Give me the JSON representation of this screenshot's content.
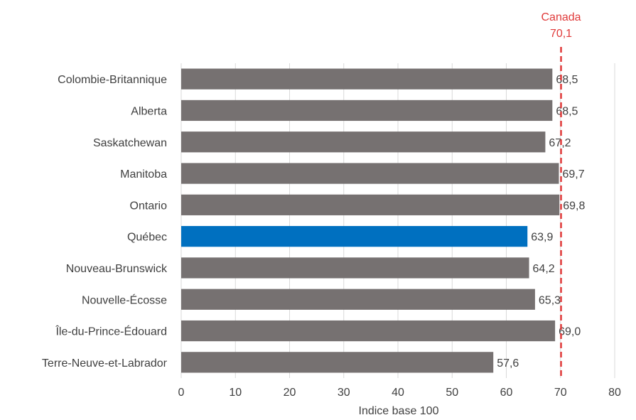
{
  "chart_data": {
    "type": "bar",
    "orientation": "horizontal",
    "categories": [
      "Colombie-Britannique",
      "Alberta",
      "Saskatchewan",
      "Manitoba",
      "Ontario",
      "Québec",
      "Nouveau-Brunswick",
      "Nouvelle-Écosse",
      "Île-du-Prince-Édouard",
      "Terre-Neuve-et-Labrador"
    ],
    "values": [
      68.5,
      68.5,
      67.2,
      69.7,
      69.8,
      63.9,
      64.2,
      65.3,
      69.0,
      57.6
    ],
    "value_labels": [
      "68,5",
      "68,5",
      "67,2",
      "69,7",
      "69,8",
      "63,9",
      "64,2",
      "65,3",
      "69,0",
      "57,6"
    ],
    "highlight_category": "Québec",
    "xlabel": "Indice base 100",
    "ylabel": "",
    "xlim": [
      0,
      80
    ],
    "xticks": [
      0,
      10,
      20,
      30,
      40,
      50,
      60,
      70,
      80
    ],
    "grid": "vertical",
    "reference_line": {
      "name": "Canada",
      "value": 70.1,
      "value_label": "70,1",
      "style": "dashed"
    },
    "colors": {
      "bar": "#767171",
      "highlight": "#0070C0",
      "reference": "#E03A3A",
      "grid": "#D9D9D9",
      "text": "#404040"
    }
  }
}
